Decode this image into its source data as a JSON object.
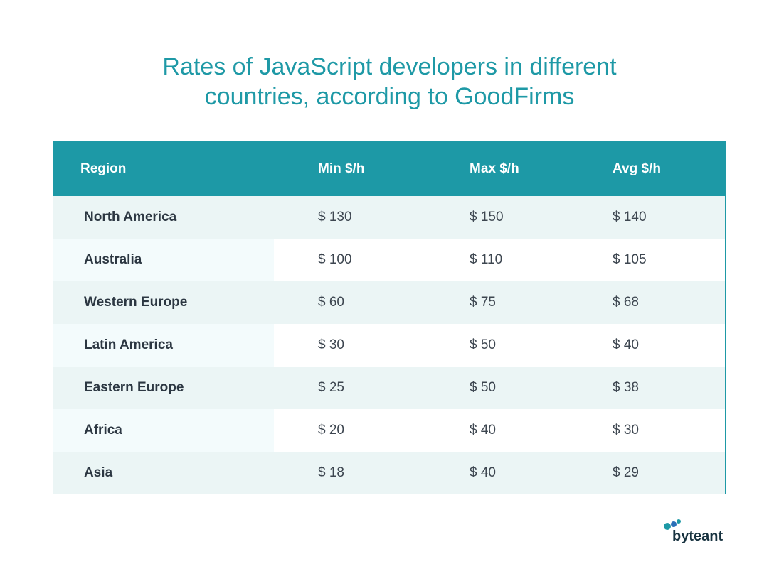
{
  "title": {
    "line1": "Rates of JavaScript developers in different",
    "line2": "countries, according to GoodFirms"
  },
  "chart_data": {
    "type": "table",
    "columns": [
      "Region",
      "Min $/h",
      "Max $/h",
      "Avg $/h"
    ],
    "rows": [
      {
        "region": "North America",
        "min": "$ 130",
        "max": "$ 150",
        "avg": "$ 140"
      },
      {
        "region": "Australia",
        "min": "$ 100",
        "max": "$ 110",
        "avg": "$ 105"
      },
      {
        "region": "Western Europe",
        "min": "$ 60",
        "max": "$ 75",
        "avg": "$ 68"
      },
      {
        "region": "Latin America",
        "min": "$ 30",
        "max": "$ 50",
        "avg": "$ 40"
      },
      {
        "region": "Eastern Europe",
        "min": "$ 25",
        "max": "$ 50",
        "avg": "$ 38"
      },
      {
        "region": "Africa",
        "min": "$ 20",
        "max": "$ 40",
        "avg": "$ 30"
      },
      {
        "region": "Asia",
        "min": "$ 18",
        "max": "$ 40",
        "avg": "$ 29"
      }
    ]
  },
  "colors": {
    "accent": "#1d99a6",
    "header_text": "#ffffff",
    "stripe": "#ebf5f5"
  },
  "logo": {
    "text": "byteant",
    "icon": "byteant-dots-icon"
  }
}
